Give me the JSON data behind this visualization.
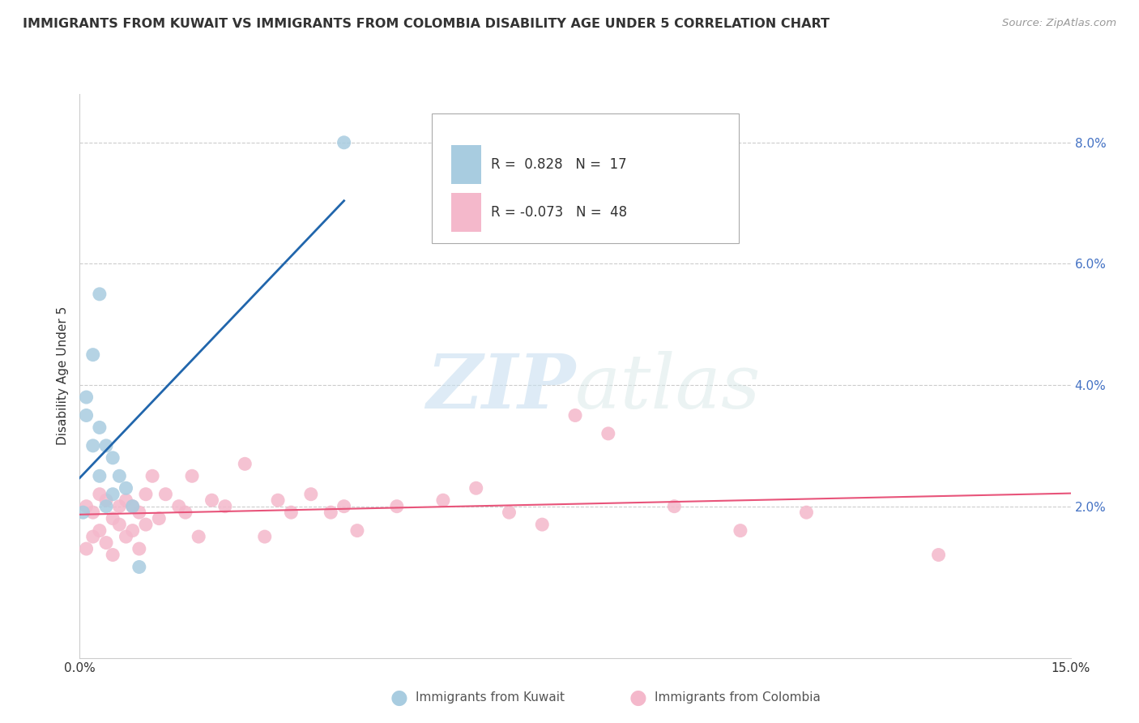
{
  "title": "IMMIGRANTS FROM KUWAIT VS IMMIGRANTS FROM COLOMBIA DISABILITY AGE UNDER 5 CORRELATION CHART",
  "source": "Source: ZipAtlas.com",
  "ylabel": "Disability Age Under 5",
  "xlim": [
    0.0,
    0.15
  ],
  "ylim": [
    -0.005,
    0.088
  ],
  "ytick_vals": [
    0.0,
    0.02,
    0.04,
    0.06,
    0.08
  ],
  "ytick_labels": [
    "",
    "2.0%",
    "4.0%",
    "6.0%",
    "8.0%"
  ],
  "kuwait_R": 0.828,
  "kuwait_N": 17,
  "colombia_R": -0.073,
  "colombia_N": 48,
  "kuwait_color": "#a8cce0",
  "colombia_color": "#f4b8cb",
  "kuwait_line_color": "#2166ac",
  "colombia_line_color": "#e8547a",
  "watermark_zip": "ZIP",
  "watermark_atlas": "atlas",
  "background_color": "#ffffff",
  "grid_color": "#cccccc",
  "tick_color": "#4472c4",
  "kuwait_x": [
    0.0005,
    0.001,
    0.001,
    0.002,
    0.002,
    0.003,
    0.003,
    0.003,
    0.004,
    0.004,
    0.005,
    0.005,
    0.006,
    0.007,
    0.008,
    0.009,
    0.04
  ],
  "kuwait_y": [
    0.019,
    0.038,
    0.035,
    0.045,
    0.03,
    0.055,
    0.033,
    0.025,
    0.03,
    0.02,
    0.028,
    0.022,
    0.025,
    0.023,
    0.02,
    0.01,
    0.08
  ],
  "colombia_x": [
    0.001,
    0.001,
    0.002,
    0.002,
    0.003,
    0.003,
    0.004,
    0.004,
    0.005,
    0.005,
    0.006,
    0.006,
    0.007,
    0.007,
    0.008,
    0.008,
    0.009,
    0.009,
    0.01,
    0.01,
    0.011,
    0.012,
    0.013,
    0.015,
    0.016,
    0.017,
    0.018,
    0.02,
    0.022,
    0.025,
    0.028,
    0.03,
    0.032,
    0.035,
    0.038,
    0.04,
    0.042,
    0.048,
    0.055,
    0.06,
    0.065,
    0.07,
    0.075,
    0.08,
    0.09,
    0.1,
    0.11,
    0.13
  ],
  "colombia_y": [
    0.02,
    0.013,
    0.019,
    0.015,
    0.022,
    0.016,
    0.021,
    0.014,
    0.018,
    0.012,
    0.02,
    0.017,
    0.021,
    0.015,
    0.02,
    0.016,
    0.019,
    0.013,
    0.022,
    0.017,
    0.025,
    0.018,
    0.022,
    0.02,
    0.019,
    0.025,
    0.015,
    0.021,
    0.02,
    0.027,
    0.015,
    0.021,
    0.019,
    0.022,
    0.019,
    0.02,
    0.016,
    0.02,
    0.021,
    0.023,
    0.019,
    0.017,
    0.035,
    0.032,
    0.02,
    0.016,
    0.019,
    0.012
  ]
}
